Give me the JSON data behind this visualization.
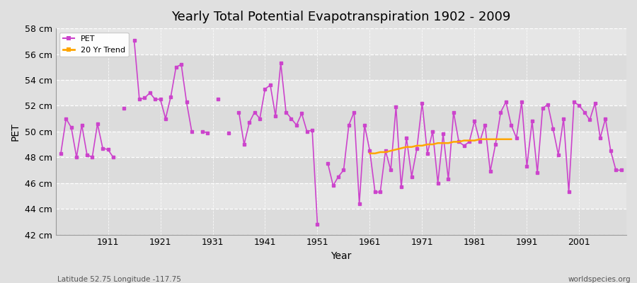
{
  "title": "Yearly Total Potential Evapotranspiration 1902 - 2009",
  "ylabel": "PET",
  "xlabel": "Year",
  "subtitle_left": "Latitude 52.75 Longitude -117.75",
  "subtitle_right": "worldspecies.org",
  "ylim": [
    42,
    58
  ],
  "xlim": [
    1901,
    2010
  ],
  "ytick_labels": [
    "42 cm",
    "44 cm",
    "46 cm",
    "48 cm",
    "50 cm",
    "52 cm",
    "54 cm",
    "56 cm",
    "58 cm"
  ],
  "ytick_values": [
    42,
    44,
    46,
    48,
    50,
    52,
    54,
    56,
    58
  ],
  "xtick_values": [
    1911,
    1921,
    1931,
    1941,
    1951,
    1961,
    1971,
    1981,
    1991,
    2001
  ],
  "pet_color": "#CC44CC",
  "trend_color": "#FFA500",
  "bg_color": "#E0E0E0",
  "plot_bg_color": "#EBEBEB",
  "segments": [
    {
      "years": [
        1902,
        1903,
        1904,
        1905,
        1906,
        1907,
        1908,
        1909,
        1910,
        1911,
        1912
      ],
      "values": [
        48.3,
        51.0,
        50.3,
        48.0,
        50.5,
        48.2,
        48.0,
        50.6,
        48.7,
        48.6,
        48.0
      ]
    },
    {
      "years": [
        1914
      ],
      "values": [
        51.8
      ]
    },
    {
      "years": [
        1916,
        1917,
        1918,
        1919,
        1920,
        1921,
        1922,
        1923,
        1924,
        1925,
        1926,
        1927
      ],
      "values": [
        57.1,
        52.5,
        52.6,
        53.0,
        52.5,
        52.5,
        51.0,
        52.7,
        55.0,
        55.2,
        52.3,
        50.0
      ]
    },
    {
      "years": [
        1929,
        1930
      ],
      "values": [
        50.0,
        49.9
      ]
    },
    {
      "years": [
        1932
      ],
      "values": [
        52.5
      ]
    },
    {
      "years": [
        1934
      ],
      "values": [
        49.9
      ]
    },
    {
      "years": [
        1936,
        1937,
        1938,
        1939,
        1940,
        1941,
        1942,
        1943,
        1944,
        1945,
        1946,
        1947,
        1948,
        1949,
        1950,
        1951
      ],
      "values": [
        51.5,
        49.0,
        50.7,
        51.5,
        51.0,
        53.3,
        53.6,
        51.2,
        55.3,
        51.5,
        51.0,
        50.5,
        51.4,
        50.0,
        50.1,
        42.8
      ]
    },
    {
      "years": [
        1953,
        1954,
        1955,
        1956,
        1957,
        1958,
        1959,
        1960,
        1961,
        1962,
        1963,
        1964,
        1965,
        1966,
        1967,
        1968,
        1969,
        1970,
        1971,
        1972,
        1973,
        1974,
        1975,
        1976,
        1977,
        1978,
        1979,
        1980,
        1981,
        1982,
        1983,
        1984,
        1985,
        1986,
        1987,
        1988,
        1989,
        1990,
        1991,
        1992,
        1993,
        1994,
        1995,
        1996,
        1997,
        1998,
        1999,
        2000,
        2001,
        2002,
        2003,
        2004,
        2005,
        2006,
        2007,
        2008,
        2009
      ],
      "values": [
        47.5,
        45.8,
        46.5,
        47.0,
        50.5,
        51.5,
        44.4,
        50.5,
        48.5,
        45.3,
        45.3,
        48.5,
        47.0,
        51.9,
        45.7,
        49.5,
        46.5,
        48.7,
        52.2,
        48.3,
        50.0,
        46.0,
        49.8,
        46.3,
        51.5,
        49.2,
        48.9,
        49.2,
        50.8,
        49.2,
        50.5,
        46.9,
        49.0,
        51.5,
        52.3,
        50.5,
        49.5,
        52.3,
        47.3,
        50.8,
        46.8,
        51.8,
        52.1,
        50.2,
        48.2,
        51.0,
        45.3,
        52.3,
        52.0,
        51.5,
        50.9,
        52.2,
        49.5,
        51.0,
        48.5,
        47.0,
        47.0
      ]
    }
  ],
  "trend_years": [
    1961,
    1962,
    1963,
    1964,
    1965,
    1966,
    1967,
    1968,
    1969,
    1970,
    1971,
    1972,
    1973,
    1974,
    1975,
    1976,
    1977,
    1978,
    1979,
    1980,
    1981,
    1982,
    1983,
    1984,
    1985,
    1986,
    1987,
    1988
  ],
  "trend_values": [
    48.3,
    48.3,
    48.4,
    48.4,
    48.5,
    48.6,
    48.7,
    48.8,
    48.8,
    48.9,
    48.9,
    49.0,
    49.0,
    49.1,
    49.1,
    49.1,
    49.2,
    49.2,
    49.3,
    49.3,
    49.3,
    49.4,
    49.4,
    49.4,
    49.4,
    49.4,
    49.4,
    49.4
  ]
}
